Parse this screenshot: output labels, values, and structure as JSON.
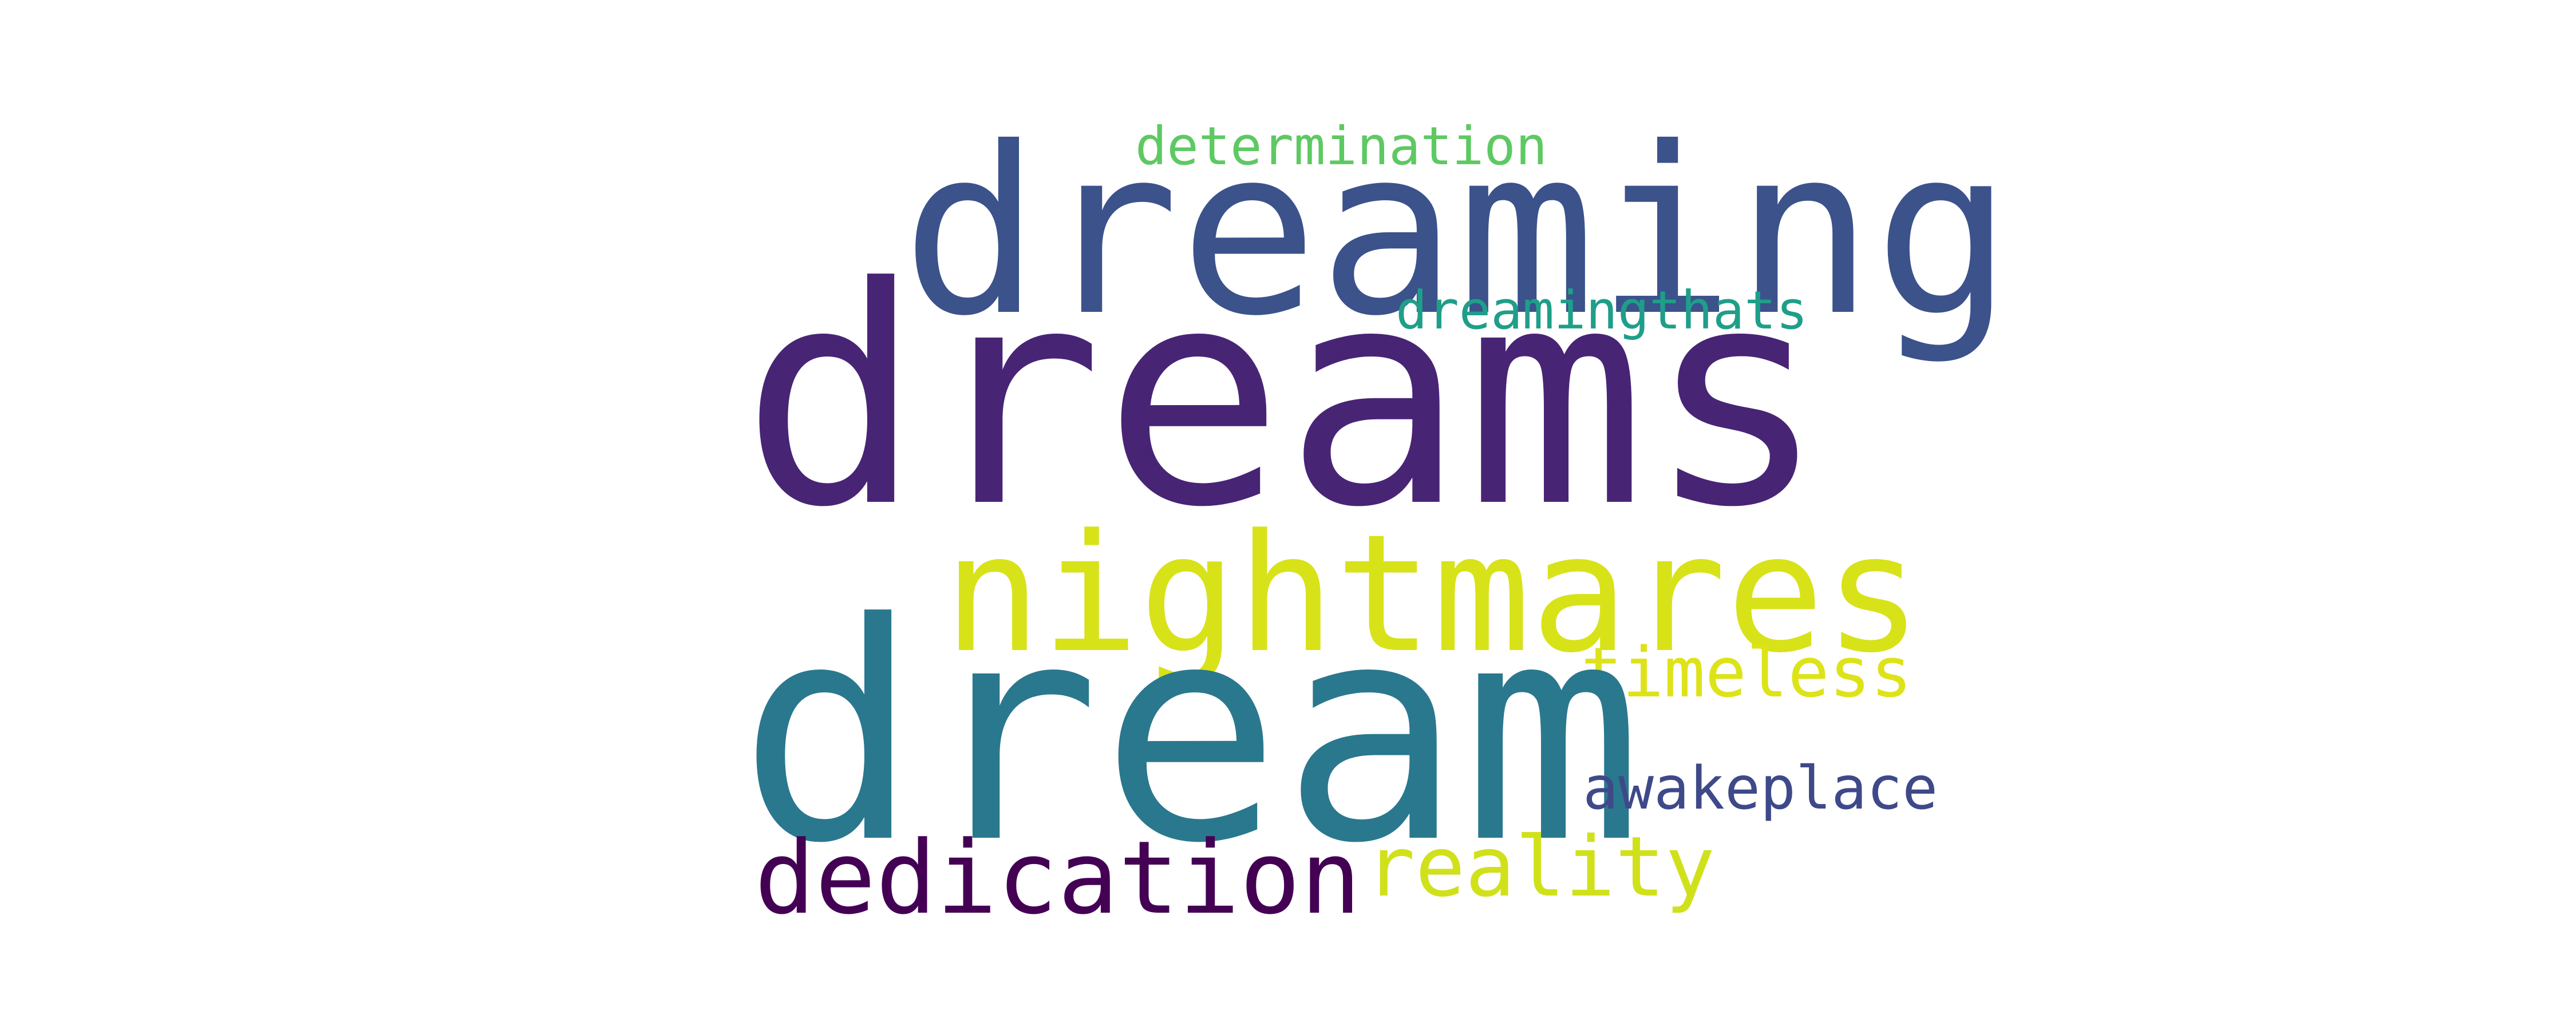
{
  "words": {
    "dreams": {
      "text": "dreams",
      "color": "#482475"
    },
    "dreaming": {
      "text": "dreaming",
      "color": "#3b528b"
    },
    "nightmares": {
      "text": "nightmares",
      "color": "#d8e219"
    },
    "dream": {
      "text": "dream",
      "color": "#2a788e"
    },
    "dedication": {
      "text": "dedication",
      "color": "#440154"
    },
    "reality": {
      "text": "reality",
      "color": "#d0e11c"
    },
    "timeless": {
      "text": "timeless",
      "color": "#dde318"
    },
    "awakeplace": {
      "text": "awakeplace",
      "color": "#3e4989"
    },
    "dreamingthats": {
      "text": "dreamingthats",
      "color": "#1f9e89"
    },
    "determination": {
      "text": "determination",
      "color": "#5ec962"
    }
  }
}
